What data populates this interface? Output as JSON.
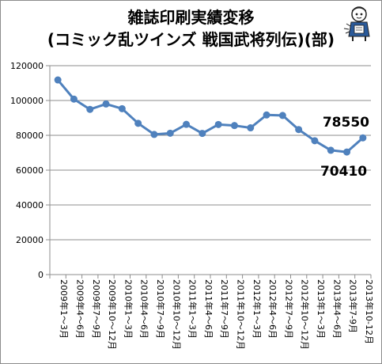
{
  "chart_data": {
    "type": "line",
    "title": "雑誌印刷実績変移",
    "subtitle": "(コミック乱ツインズ 戦国武将列伝)(部)",
    "xlabel": "",
    "ylabel": "",
    "ylim": [
      0,
      120000
    ],
    "yticks": [
      "0",
      "20000",
      "40000",
      "60000",
      "80000",
      "100000",
      "120000"
    ],
    "grid": true,
    "line_color": "#4f81bd",
    "categories": [
      "2009年1〜3月",
      "2009年4〜6月",
      "2009年7〜9月",
      "2009年10〜12月",
      "2010年1〜3月",
      "2010年4〜6月",
      "2010年7〜9月",
      "2010年10〜12月",
      "2011年1〜3月",
      "2011年4〜6月",
      "2011年7〜9月",
      "2011年10〜12月",
      "2012年1〜3月",
      "2012年4〜6月",
      "2012年7〜9月",
      "2012年10〜12月",
      "2013年1〜3月",
      "2013年4〜6月",
      "2013年7-9月",
      "2013年10-12月"
    ],
    "series": [
      {
        "values": [
          111800,
          100800,
          94900,
          98000,
          95300,
          86900,
          80500,
          81200,
          86300,
          81100,
          86200,
          85600,
          84300,
          91700,
          91400,
          83300,
          76900,
          71400,
          70410,
          78550
        ]
      }
    ],
    "annotations": [
      {
        "text": "78550",
        "index": 19
      },
      {
        "text": "70410",
        "index": 18
      }
    ]
  }
}
